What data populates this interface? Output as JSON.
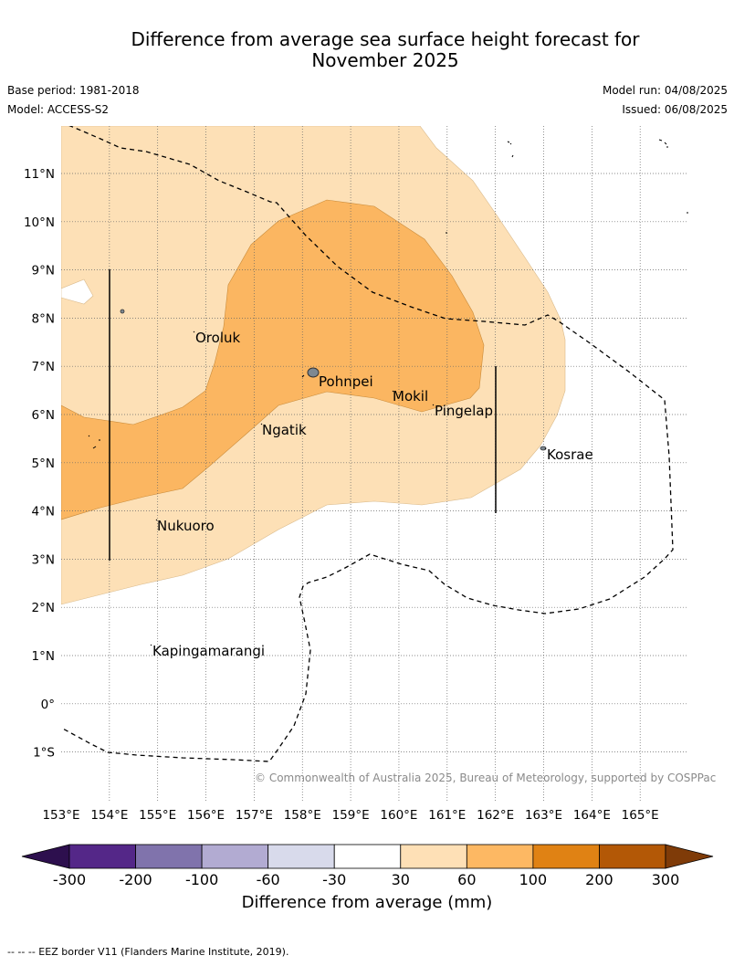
{
  "header": {
    "title_line1": "Difference from average sea surface height forecast for",
    "title_line2": "November 2025",
    "base_period": "Base period: 1981-2018",
    "model": "Model: ACCESS-S2",
    "model_run": "Model run: 04/08/2025",
    "issued": "Issued: 06/08/2025"
  },
  "map": {
    "lon_labels": [
      "153°E",
      "154°E",
      "155°E",
      "156°E",
      "157°E",
      "158°E",
      "159°E",
      "160°E",
      "161°E",
      "162°E",
      "163°E",
      "164°E",
      "165°E"
    ],
    "lat_labels": [
      "11°N",
      "10°N",
      "9°N",
      "8°N",
      "7°N",
      "6°N",
      "5°N",
      "4°N",
      "3°N",
      "2°N",
      "1°N",
      "0°",
      "1°S"
    ],
    "places": {
      "oroluk": "Oroluk",
      "pohnpei": "Pohnpei",
      "mokil": "Mokil",
      "pingelap": "Pingelap",
      "ngatik": "Ngatik",
      "kosrae": "Kosrae",
      "nukuoro": "Nukuoro",
      "kapingamarangi": "Kapingamarangi"
    },
    "colors": {
      "band_30_60": "#fde0b6",
      "band_60_100": "#fbb661",
      "border": "#000000"
    },
    "credit": "© Commonwealth of Australia 2025, Bureau of Meteorology, supported by COSPPac"
  },
  "colorbar": {
    "ticks": [
      "-300",
      "-200",
      "-100",
      "-60",
      "-30",
      "30",
      "60",
      "100",
      "200",
      "300"
    ],
    "colors": [
      "#2d0f4e",
      "#542788",
      "#8073ac",
      "#b2abd2",
      "#d8daeb",
      "#ffffff",
      "#fee0b6",
      "#fdb863",
      "#e08214",
      "#b35806",
      "#7f3b08"
    ],
    "title": "Difference from average (mm)"
  },
  "footnote": "--  --  -- EEZ border V11 (Flanders Marine Institute, 2019)."
}
